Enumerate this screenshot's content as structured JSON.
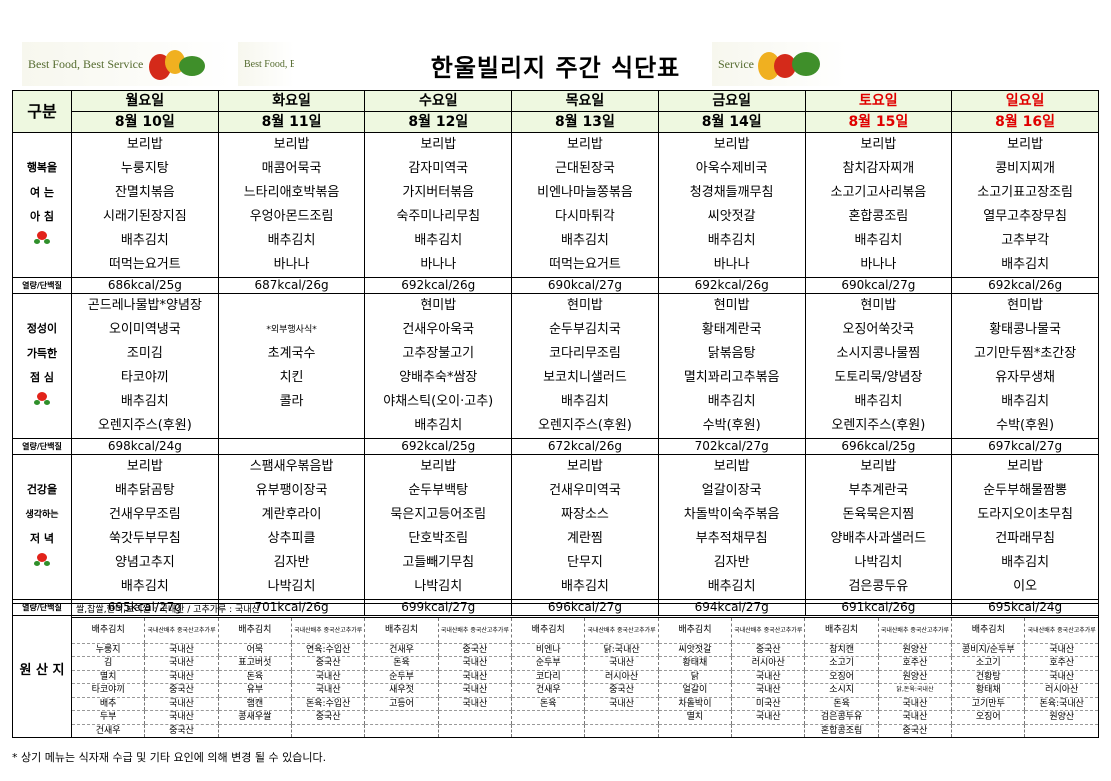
{
  "header": {
    "title": "한울빌리지 주간 식단표",
    "banner_left": "Best Food, Best Service",
    "banner_mid": "Best Food, Best Se",
    "banner_right": "Service"
  },
  "table": {
    "gubun": "구분",
    "days": [
      {
        "name": "월요일",
        "date": "8월 10일",
        "holiday": false
      },
      {
        "name": "화요일",
        "date": "8월 11일",
        "holiday": false
      },
      {
        "name": "수요일",
        "date": "8월 12일",
        "holiday": false
      },
      {
        "name": "목요일",
        "date": "8월 13일",
        "holiday": false
      },
      {
        "name": "금요일",
        "date": "8월 14일",
        "holiday": false
      },
      {
        "name": "토요일",
        "date": "8월 15일",
        "holiday": true
      },
      {
        "name": "일요일",
        "date": "8월 16일",
        "holiday": true
      }
    ],
    "kcal_label": "열량/단백질",
    "meals": {
      "breakfast": {
        "side": [
          "행복을",
          "여 는",
          "아 침"
        ],
        "menus": [
          [
            "보리밥",
            "누룽지탕",
            "잔멸치볶음",
            "시래기된장지짐",
            "배추김치",
            "떠먹는요거트"
          ],
          [
            "보리밥",
            "매콤어묵국",
            "느타리애호박볶음",
            "우엉아몬드조림",
            "배추김치",
            "바나나"
          ],
          [
            "보리밥",
            "감자미역국",
            "가지버터볶음",
            "숙주미나리무침",
            "배추김치",
            "바나나"
          ],
          [
            "보리밥",
            "근대된장국",
            "비엔나마늘쫑볶음",
            "다시마튀각",
            "배추김치",
            "떠먹는요거트"
          ],
          [
            "보리밥",
            "아욱수제비국",
            "청경채들깨무침",
            "씨앗젓갈",
            "배추김치",
            "바나나"
          ],
          [
            "보리밥",
            "참치감자찌개",
            "소고기고사리볶음",
            "혼합콩조림",
            "배추김치",
            "바나나"
          ],
          [
            "보리밥",
            "콩비지찌개",
            "소고기표고장조림",
            "열무고추장무침",
            "고추부각",
            "배추김치"
          ]
        ],
        "kcal": [
          "686kcal/25g",
          "687kcal/26g",
          "692kcal/26g",
          "690kcal/27g",
          "692kcal/26g",
          "690kcal/27g",
          "692kcal/26g"
        ]
      },
      "lunch": {
        "side": [
          "정성이",
          "가득한",
          "점 심"
        ],
        "menus": [
          [
            "곤드레나물밥*양념장",
            "오이미역냉국",
            "조미김",
            "타코야끼",
            "배추김치",
            "오렌지주스(후원)"
          ],
          [
            "",
            "*외부행사식*",
            "초계국수",
            "치킨",
            "콜라",
            ""
          ],
          [
            "현미밥",
            "건새우아욱국",
            "고추장불고기",
            "양배추숙*쌈장",
            "야채스틱(오이·고추)",
            "배추김치"
          ],
          [
            "현미밥",
            "순두부김치국",
            "코다리무조림",
            "보코치니샐러드",
            "배추김치",
            "오렌지주스(후원)"
          ],
          [
            "현미밥",
            "황태계란국",
            "닭볶음탕",
            "멸치꽈리고추볶음",
            "배추김치",
            "수박(후원)"
          ],
          [
            "현미밥",
            "오징어쑥갓국",
            "소시지콩나물찜",
            "도토리묵/양념장",
            "배추김치",
            "오렌지주스(후원)"
          ],
          [
            "현미밥",
            "황태콩나물국",
            "고기만두찜*초간장",
            "유자무생채",
            "배추김치",
            "수박(후원)"
          ]
        ],
        "kcal": [
          "698kcal/24g",
          "",
          "692kcal/25g",
          "672kcal/26g",
          "702kcal/27g",
          "696kcal/25g",
          "697kcal/27g"
        ]
      },
      "dinner": {
        "side": [
          "건강을",
          "생각하는",
          "저 녁"
        ],
        "menus": [
          [
            "보리밥",
            "배추닭곰탕",
            "건새우무조림",
            "쑥갓두부무침",
            "양념고추지",
            "배추김치"
          ],
          [
            "스팸새우볶음밥",
            "유부팽이장국",
            "계란후라이",
            "상추피클",
            "김자반",
            "나박김치"
          ],
          [
            "보리밥",
            "순두부백탕",
            "묵은지고등어조림",
            "단호박조림",
            "고들빼기무침",
            "나박김치"
          ],
          [
            "보리밥",
            "건새우미역국",
            "짜장소스",
            "계란찜",
            "단무지",
            "배추김치"
          ],
          [
            "보리밥",
            "얼갈이장국",
            "차돌박이숙주볶음",
            "부추적채무침",
            "김자반",
            "배추김치"
          ],
          [
            "보리밥",
            "부추계란국",
            "돈육묵은지찜",
            "양배추사과샐러드",
            "나박김치",
            "검은콩두유"
          ],
          [
            "보리밥",
            "순두부해물짬뽕",
            "도라지오이초무침",
            "건파래무침",
            "배추김치",
            "이오"
          ]
        ],
        "kcal": [
          "695kcal/27g",
          "701kcal/26g",
          "699kcal/27g",
          "696kcal/27g",
          "694kcal/27g",
          "691kcal/26g",
          "695kcal/24g"
        ]
      }
    }
  },
  "origin": {
    "label": "원 산 지",
    "header_note": "쌀,찹쌀,현미,보리쌀 : 국내산 / 고추가루 : 국내산",
    "rows": [
      [
        "배추김치",
        "국내산배추 중국산고추가루",
        "배추김치",
        "국내산배추 중국산고추가루",
        "배추김치",
        "국내산배추 중국산고추가루",
        "배추김치",
        "국내산배추 중국산고추가루",
        "배추김치",
        "국내산배추 중국산고추가루",
        "배추김치",
        "국내산배추 중국산고추가루",
        "배추김치",
        "국내산배추 중국산고추가루"
      ],
      [
        "누룽지",
        "국내산",
        "어묵",
        "연육:수입산",
        "건새우",
        "중국산",
        "비엔나",
        "닭:국내산",
        "씨앗젓갈",
        "중국산",
        "참치캔",
        "원양산",
        "콩비지/순두부",
        "국내산"
      ],
      [
        "김",
        "국내산",
        "표고버섯",
        "중국산",
        "돈육",
        "국내산",
        "순두부",
        "국내산",
        "황태채",
        "러시아산",
        "소고기",
        "호주산",
        "소고기",
        "호주산"
      ],
      [
        "멸치",
        "국내산",
        "돈육",
        "국내산",
        "순두부",
        "국내산",
        "코다리",
        "러시아산",
        "닭",
        "국내산",
        "오징어",
        "원양산",
        "건황탕",
        "국내산"
      ],
      [
        "타코야끼",
        "중국산",
        "유부",
        "국내산",
        "새우젓",
        "국내산",
        "건새우",
        "중국산",
        "얼갈이",
        "국내산",
        "소시지",
        "닭,돈육:국내산",
        "황태채",
        "러시아산"
      ],
      [
        "배추",
        "국내산",
        "햄캔",
        "돈육:수입산",
        "고등어",
        "국내산",
        "돈육",
        "국내산",
        "차돌박이",
        "미국산",
        "돈육",
        "국내산",
        "고기만두",
        "돈육:국내산"
      ],
      [
        "두부",
        "국내산",
        "콩새우쌀",
        "중국산",
        "",
        "",
        "",
        "",
        "멸치",
        "국내산",
        "검은콩두유",
        "국내산",
        "오징어",
        "원양산"
      ],
      [
        "건새우",
        "중국산",
        "",
        "",
        "",
        "",
        "",
        "",
        "",
        "",
        "혼합콩조림",
        "중국산",
        "",
        ""
      ]
    ]
  },
  "footnote": "* 상기 메뉴는 식자재 수급 및 기타 요인에 의해 변경 될 수 있습니다."
}
